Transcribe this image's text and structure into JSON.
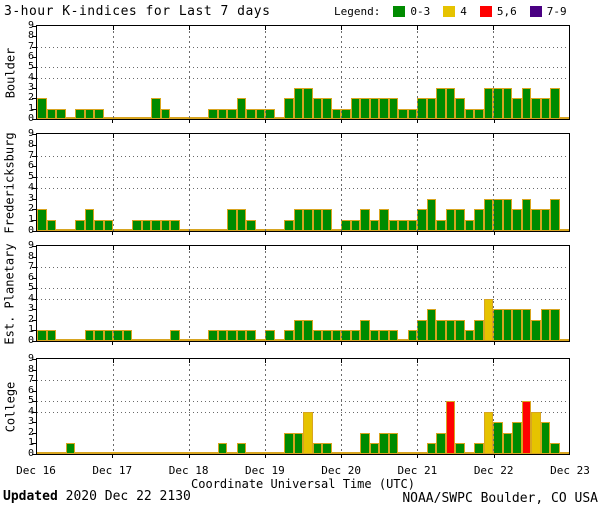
{
  "title": "3-hour K-indices for Last 7 days",
  "legend": {
    "label": "Legend:",
    "items": [
      {
        "label": "0-3",
        "color": "#008b00"
      },
      {
        "label": "4",
        "color": "#e6c300"
      },
      {
        "label": "5,6",
        "color": "#ff0000"
      },
      {
        "label": "7-9",
        "color": "#4a0082"
      }
    ]
  },
  "footer": {
    "updated_label": "Updated",
    "updated_value": " 2020 Dec 22 2130",
    "source": "NOAA/SWPC Boulder, CO USA"
  },
  "chart_data": {
    "type": "bar",
    "title": "3-hour K-indices for Last 7 days",
    "xlabel": "Coordinate Universal Time (UTC)",
    "x_tick_labels": [
      "Dec 16",
      "Dec 17",
      "Dec 18",
      "Dec 19",
      "Dec 20",
      "Dec 21",
      "Dec 22",
      "Dec 23"
    ],
    "x_range_days": 7,
    "bars_per_day": 8,
    "bar_interval_hours": 3,
    "ylim": [
      0,
      9
    ],
    "y_ticks": [
      0,
      1,
      2,
      3,
      4,
      5,
      6,
      7,
      8,
      9
    ],
    "gridlines_y": [
      4,
      5,
      7
    ],
    "grid": "dotted",
    "legend_position": "top-right",
    "color_rules": [
      {
        "range": [
          0,
          3
        ],
        "color": "#008b00",
        "label": "0-3"
      },
      {
        "range": [
          4,
          4
        ],
        "color": "#e6c300",
        "label": "4"
      },
      {
        "range": [
          5,
          6
        ],
        "color": "#ff0000",
        "label": "5,6"
      },
      {
        "range": [
          7,
          9
        ],
        "color": "#4a0082",
        "label": "7-9"
      }
    ],
    "bar_outline_color": "#d8a520",
    "series": [
      {
        "name": "Boulder",
        "values": [
          2,
          1,
          1,
          0,
          1,
          1,
          1,
          0,
          0,
          0,
          0,
          0,
          2,
          1,
          0,
          0,
          0,
          0,
          1,
          1,
          1,
          2,
          1,
          1,
          1,
          0,
          2,
          3,
          3,
          2,
          2,
          1,
          1,
          2,
          2,
          2,
          2,
          2,
          1,
          1,
          2,
          2,
          3,
          3,
          2,
          1,
          1,
          3,
          3,
          3,
          2,
          3,
          2,
          2,
          3,
          0
        ]
      },
      {
        "name": "Fredericksburg",
        "values": [
          2,
          1,
          0,
          0,
          1,
          2,
          1,
          1,
          0,
          0,
          1,
          1,
          1,
          1,
          1,
          0,
          0,
          0,
          0,
          0,
          2,
          2,
          1,
          0,
          0,
          0,
          1,
          2,
          2,
          2,
          2,
          0,
          1,
          1,
          2,
          1,
          2,
          1,
          1,
          1,
          2,
          3,
          1,
          2,
          2,
          1,
          2,
          3,
          3,
          3,
          2,
          3,
          2,
          2,
          3,
          0
        ]
      },
      {
        "name": "Est. Planetary",
        "values": [
          1,
          1,
          0,
          0,
          0,
          1,
          1,
          1,
          1,
          1,
          0,
          0,
          0,
          0,
          1,
          0,
          0,
          0,
          1,
          1,
          1,
          1,
          1,
          0,
          1,
          0,
          1,
          2,
          2,
          1,
          1,
          1,
          1,
          1,
          2,
          1,
          1,
          1,
          0,
          1,
          2,
          3,
          2,
          2,
          2,
          1,
          2,
          4,
          3,
          3,
          3,
          3,
          2,
          3,
          3,
          0
        ]
      },
      {
        "name": "College",
        "values": [
          0,
          0,
          0,
          1,
          0,
          0,
          0,
          0,
          0,
          0,
          0,
          0,
          0,
          0,
          0,
          0,
          0,
          0,
          0,
          1,
          0,
          1,
          0,
          0,
          0,
          0,
          2,
          2,
          4,
          1,
          1,
          0,
          0,
          0,
          2,
          1,
          2,
          2,
          0,
          0,
          0,
          1,
          2,
          5,
          1,
          0,
          1,
          4,
          3,
          2,
          3,
          5,
          4,
          3,
          1,
          0
        ]
      }
    ]
  }
}
